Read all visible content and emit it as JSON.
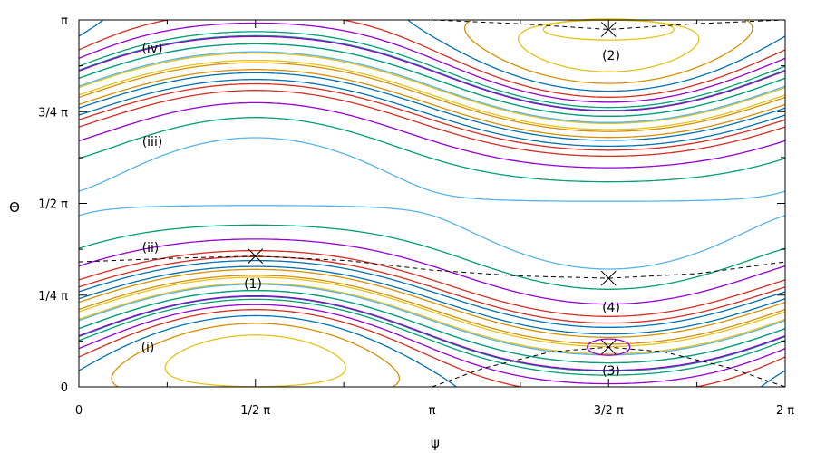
{
  "chart_data": {
    "type": "line",
    "subtype": "phase-portrait-contours",
    "xlabel": "ψ",
    "ylabel": "Θ",
    "xlim": [
      0,
      6.2832
    ],
    "ylim": [
      0,
      3.1416
    ],
    "xticks": [
      {
        "value": 0,
        "label": "0"
      },
      {
        "value": 1.5708,
        "label": "1/2 π"
      },
      {
        "value": 3.1416,
        "label": "π"
      },
      {
        "value": 4.7124,
        "label": "3/2 π"
      },
      {
        "value": 6.2832,
        "label": "2 π"
      }
    ],
    "yticks": [
      {
        "value": 0,
        "label": "0"
      },
      {
        "value": 0.7854,
        "label": "1/4 π"
      },
      {
        "value": 1.5708,
        "label": "1/2 π"
      },
      {
        "value": 2.3562,
        "label": "3/4 π"
      },
      {
        "value": 3.1416,
        "label": "π"
      }
    ],
    "minor_x_step": 0.7854,
    "minor_y_step": 0.3927,
    "grid": false,
    "legend": "none",
    "palette": [
      "#9400d3",
      "#009e73",
      "#56b4e9",
      "#e6c21a",
      "#d99000",
      "#0072b2",
      "#d62d20"
    ],
    "fixed_points": [
      {
        "label": "(1)",
        "x": 1.5708,
        "y": 1.12,
        "kind": "center"
      },
      {
        "label": "(2)",
        "x": 4.7124,
        "y": 3.06,
        "kind": "center"
      },
      {
        "label": "(3)",
        "x": 4.7124,
        "y": 0.34,
        "kind": "center"
      },
      {
        "label": "(4)",
        "x": 4.7124,
        "y": 0.93,
        "kind": "saddle"
      }
    ],
    "trajectory_labels": [
      {
        "label": "(i)",
        "x": 0.59,
        "y": 0.35
      },
      {
        "label": "(ii)",
        "x": 0.62,
        "y": 1.19
      },
      {
        "label": "(iii)",
        "x": 0.62,
        "y": 2.13
      },
      {
        "label": "(iv)",
        "x": 0.62,
        "y": 2.95
      }
    ],
    "fixed_point_curve": {
      "style": "dashed",
      "upper": [
        [
          3.1416,
          3.1416
        ],
        [
          3.9,
          3.11
        ],
        [
          4.7124,
          3.06
        ],
        [
          5.5,
          3.11
        ],
        [
          6.2832,
          3.1416
        ]
      ],
      "middle": [
        [
          0,
          1.07
        ],
        [
          0.8,
          1.1
        ],
        [
          1.5708,
          1.12
        ],
        [
          2.4,
          1.08
        ],
        [
          3.1416,
          1.0
        ],
        [
          3.9,
          0.95
        ],
        [
          4.7124,
          0.93
        ],
        [
          5.5,
          0.97
        ],
        [
          6.2832,
          1.07
        ]
      ],
      "lower": [
        [
          3.1416,
          0.0
        ],
        [
          3.6,
          0.16
        ],
        [
          4.2,
          0.3
        ],
        [
          4.7124,
          0.34
        ],
        [
          5.2,
          0.3
        ],
        [
          5.8,
          0.16
        ],
        [
          6.2832,
          0.0
        ]
      ]
    },
    "separatrix_level": 0.0,
    "contour_levels": {
      "inner_orbits": [
        -0.95,
        -0.78,
        -0.62,
        -0.48,
        -0.36,
        -0.26,
        -0.17,
        -0.09
      ],
      "right_orbits": [
        -0.78,
        -0.6,
        -0.44,
        -0.3,
        -0.18,
        -0.08
      ],
      "lower_curves": [
        0.05,
        0.16,
        0.3,
        0.46,
        0.64,
        0.84
      ],
      "upper_curves": [
        0.06,
        0.16,
        0.28,
        0.42,
        0.58,
        0.76,
        0.96,
        1.18,
        1.42,
        1.68,
        1.96,
        2.26,
        2.58
      ],
      "small_orbits": [
        {
          "x": 4.7124,
          "y": 3.06,
          "rx": 0.58,
          "ry": 0.09
        },
        {
          "x": 4.7124,
          "y": 0.34,
          "rx": 0.19,
          "ry": 0.07
        }
      ]
    }
  },
  "annotations": {
    "p1": "(1)",
    "p2": "(2)",
    "p3": "(3)",
    "p4": "(4)",
    "ti": "(i)",
    "tii": "(ii)",
    "tiii": "(iii)",
    "tiv": "(iv)"
  }
}
